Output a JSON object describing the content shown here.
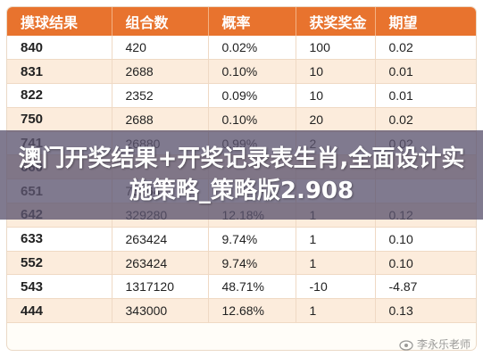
{
  "table": {
    "headers": [
      "摸球结果",
      "组合数",
      "概率",
      "获奖奖金",
      "期望"
    ],
    "rows": [
      [
        "840",
        "420",
        "0.02%",
        "100",
        "0.02"
      ],
      [
        "831",
        "2688",
        "0.10%",
        "10",
        "0.01"
      ],
      [
        "822",
        "2352",
        "0.09%",
        "10",
        "0.01"
      ],
      [
        "750",
        "2688",
        "0.10%",
        "20",
        "0.02"
      ],
      [
        "741",
        "26880",
        "0.99%",
        "2",
        "0.02"
      ],
      [
        "660",
        "",
        "",
        "",
        ""
      ],
      [
        "651",
        "75264",
        "",
        "",
        ""
      ],
      [
        "642",
        "329280",
        "12.18%",
        "1",
        "0.12"
      ],
      [
        "633",
        "263424",
        "9.74%",
        "1",
        "0.10"
      ],
      [
        "552",
        "263424",
        "9.74%",
        "1",
        "0.10"
      ],
      [
        "543",
        "1317120",
        "48.71%",
        "-10",
        "-4.87"
      ],
      [
        "444",
        "343000",
        "12.68%",
        "1",
        "0.13"
      ]
    ]
  },
  "overlay": {
    "title": "澳门开奖结果+开奖记录表生肖,全面设计实施策略_策略版2.908"
  },
  "watermark": {
    "text": "李永乐老师",
    "icon": "weibo-eye-icon"
  }
}
